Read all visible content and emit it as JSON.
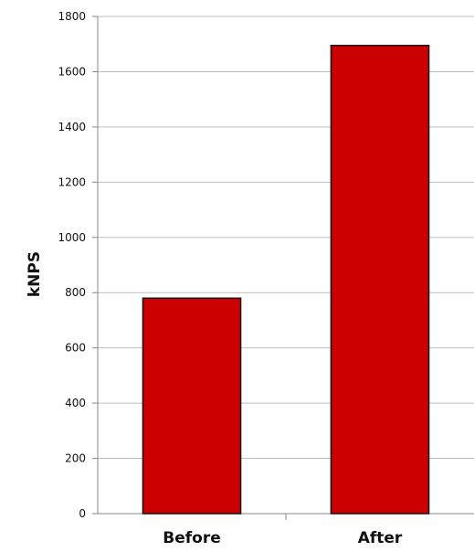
{
  "chart_data": {
    "type": "bar",
    "title": "",
    "xlabel": "",
    "ylabel": "kNPS",
    "categories": [
      "Before",
      "After"
    ],
    "values": [
      780,
      1695
    ],
    "ylim": [
      0,
      1800
    ],
    "yticks": [
      "0",
      "200",
      "400",
      "600",
      "800",
      "1000",
      "1200",
      "1400",
      "1600",
      "1800"
    ],
    "grid": true,
    "legend": "none",
    "bar_color": "#cc0000",
    "bar_edge_color": "#111111",
    "grid_color": "#bdbdbd"
  }
}
